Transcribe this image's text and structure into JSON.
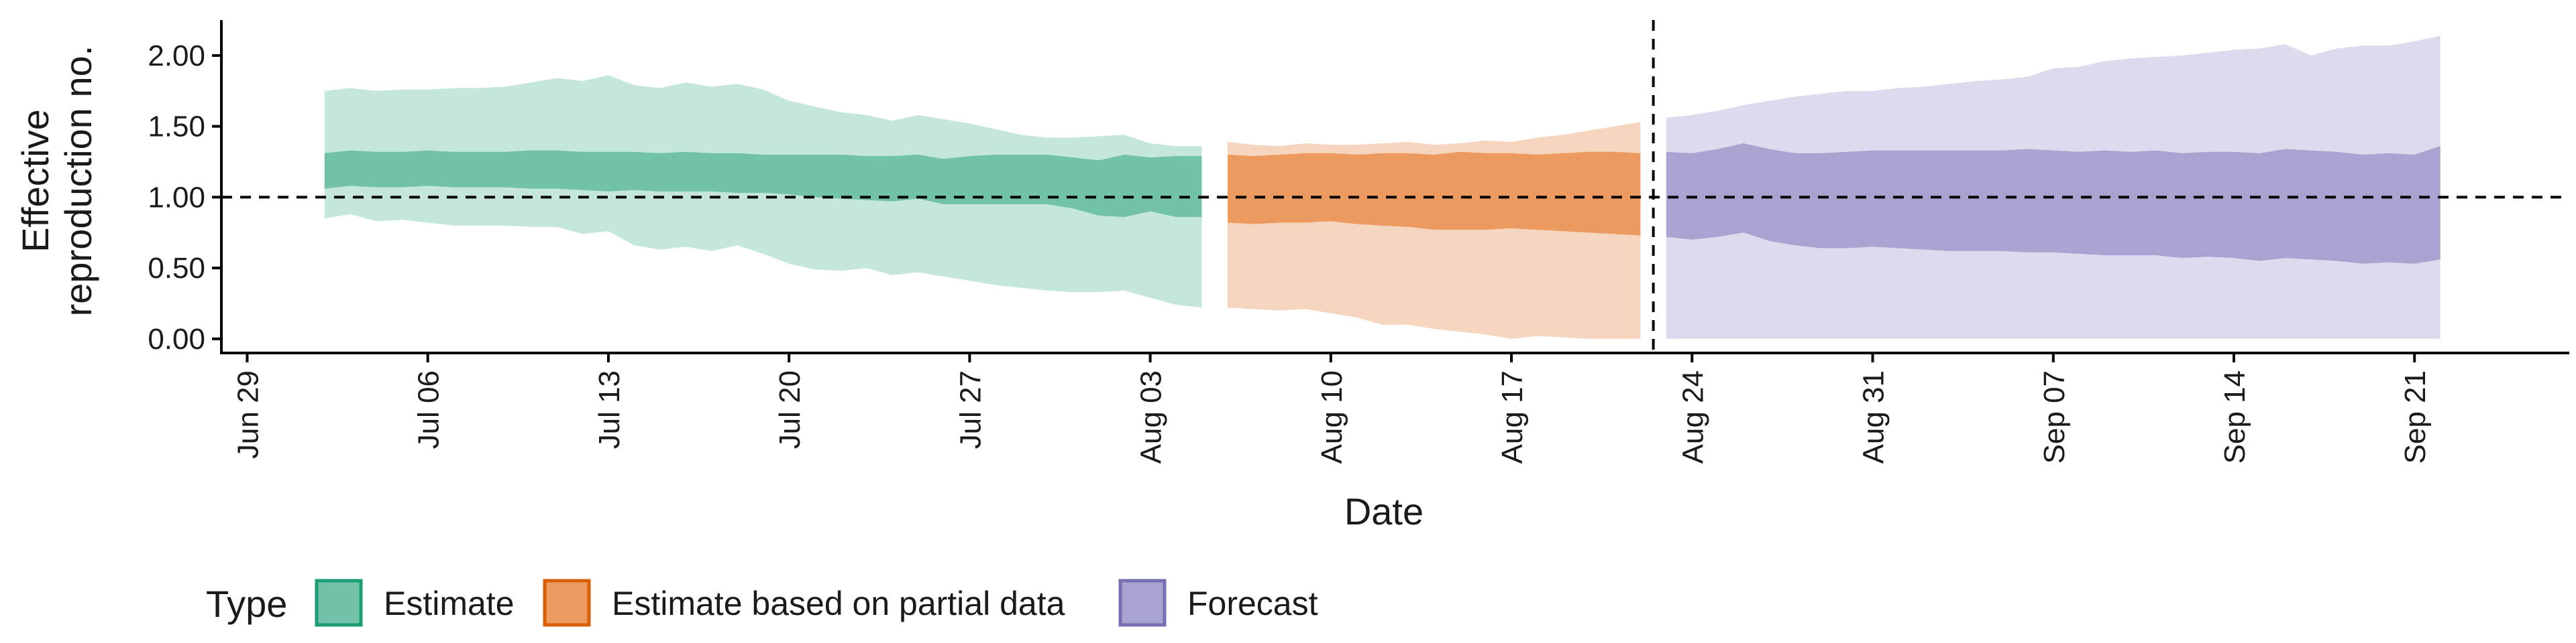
{
  "chart_data": {
    "type": "area",
    "title": "",
    "xlabel": "Date",
    "ylabel": [
      "Effective",
      "reproduction no."
    ],
    "x_ticks": [
      "Jun 29",
      "Jul 06",
      "Jul 13",
      "Jul 20",
      "Jul 27",
      "Aug 03",
      "Aug 10",
      "Aug 17",
      "Aug 24",
      "Aug 31",
      "Sep 07",
      "Sep 14",
      "Sep 21"
    ],
    "y_ticks": [
      "0.00",
      "0.50",
      "1.00",
      "1.50",
      "2.00"
    ],
    "xlim": [
      "2020-06-28",
      "2020-09-27"
    ],
    "ylim": [
      -0.1,
      2.25
    ],
    "reference_line_y": 1.0,
    "vertical_line_x": "2020-08-22",
    "grid": false,
    "legend": {
      "title": "Type",
      "position": "bottom-left",
      "entries": [
        {
          "label": "Estimate",
          "fill": "#71c2a8",
          "stroke": "#1b9e77"
        },
        {
          "label": "Estimate based on partial data",
          "fill": "#ec9a5f",
          "stroke": "#d95f02"
        },
        {
          "label": "Forecast",
          "fill": "#a8a3d0",
          "stroke": "#7570b3"
        }
      ]
    },
    "series": [
      {
        "name": "Estimate",
        "colors": {
          "outer": "#c4e6db",
          "inner": "#71c2a8"
        },
        "x": [
          "2020-07-02",
          "2020-07-03",
          "2020-07-04",
          "2020-07-05",
          "2020-07-06",
          "2020-07-07",
          "2020-07-08",
          "2020-07-09",
          "2020-07-10",
          "2020-07-11",
          "2020-07-12",
          "2020-07-13",
          "2020-07-14",
          "2020-07-15",
          "2020-07-16",
          "2020-07-17",
          "2020-07-18",
          "2020-07-19",
          "2020-07-20",
          "2020-07-21",
          "2020-07-22",
          "2020-07-23",
          "2020-07-24",
          "2020-07-25",
          "2020-07-26",
          "2020-07-27",
          "2020-07-28",
          "2020-07-29",
          "2020-07-30",
          "2020-07-31",
          "2020-08-01",
          "2020-08-02",
          "2020-08-03",
          "2020-08-04",
          "2020-08-05"
        ],
        "outer_upper": [
          1.75,
          1.77,
          1.75,
          1.76,
          1.76,
          1.77,
          1.77,
          1.78,
          1.81,
          1.84,
          1.82,
          1.86,
          1.79,
          1.77,
          1.81,
          1.78,
          1.8,
          1.76,
          1.68,
          1.64,
          1.6,
          1.58,
          1.54,
          1.58,
          1.55,
          1.52,
          1.48,
          1.44,
          1.42,
          1.42,
          1.43,
          1.44,
          1.38,
          1.36,
          1.36
        ],
        "outer_lower": [
          0.85,
          0.88,
          0.83,
          0.84,
          0.82,
          0.8,
          0.8,
          0.8,
          0.79,
          0.79,
          0.74,
          0.76,
          0.66,
          0.63,
          0.65,
          0.62,
          0.66,
          0.6,
          0.53,
          0.49,
          0.48,
          0.5,
          0.45,
          0.47,
          0.44,
          0.41,
          0.38,
          0.36,
          0.34,
          0.33,
          0.33,
          0.34,
          0.29,
          0.24,
          0.22
        ],
        "inner_upper": [
          1.31,
          1.33,
          1.32,
          1.32,
          1.33,
          1.32,
          1.32,
          1.32,
          1.33,
          1.33,
          1.32,
          1.32,
          1.32,
          1.31,
          1.32,
          1.31,
          1.31,
          1.3,
          1.3,
          1.3,
          1.3,
          1.29,
          1.29,
          1.3,
          1.27,
          1.29,
          1.3,
          1.3,
          1.3,
          1.28,
          1.26,
          1.3,
          1.28,
          1.29,
          1.29
        ],
        "inner_lower": [
          1.06,
          1.08,
          1.07,
          1.07,
          1.08,
          1.07,
          1.07,
          1.07,
          1.06,
          1.06,
          1.05,
          1.04,
          1.05,
          1.04,
          1.04,
          1.04,
          1.03,
          1.03,
          1.02,
          1.0,
          0.99,
          0.98,
          0.97,
          0.99,
          0.95,
          0.95,
          0.95,
          0.95,
          0.95,
          0.92,
          0.87,
          0.86,
          0.9,
          0.86,
          0.86
        ]
      },
      {
        "name": "Estimate based on partial data",
        "colors": {
          "outer": "#f5d5bd",
          "inner": "#ec9a5f"
        },
        "x": [
          "2020-08-06",
          "2020-08-07",
          "2020-08-08",
          "2020-08-09",
          "2020-08-10",
          "2020-08-11",
          "2020-08-12",
          "2020-08-13",
          "2020-08-14",
          "2020-08-15",
          "2020-08-16",
          "2020-08-17",
          "2020-08-18",
          "2020-08-19",
          "2020-08-20",
          "2020-08-21",
          "2020-08-22"
        ],
        "outer_upper": [
          1.39,
          1.37,
          1.36,
          1.38,
          1.37,
          1.37,
          1.38,
          1.39,
          1.37,
          1.38,
          1.4,
          1.39,
          1.42,
          1.44,
          1.47,
          1.5,
          1.53
        ],
        "outer_lower": [
          0.22,
          0.21,
          0.2,
          0.21,
          0.18,
          0.15,
          0.1,
          0.1,
          0.07,
          0.05,
          0.03,
          0.0,
          0.02,
          0.01,
          0.0,
          0.0,
          0.0
        ],
        "inner_upper": [
          1.3,
          1.29,
          1.3,
          1.31,
          1.31,
          1.3,
          1.31,
          1.31,
          1.3,
          1.32,
          1.31,
          1.31,
          1.3,
          1.31,
          1.32,
          1.32,
          1.31
        ],
        "inner_lower": [
          0.82,
          0.81,
          0.82,
          0.82,
          0.83,
          0.81,
          0.8,
          0.79,
          0.77,
          0.77,
          0.77,
          0.78,
          0.77,
          0.76,
          0.75,
          0.74,
          0.73
        ]
      },
      {
        "name": "Forecast",
        "colors": {
          "outer": "#dcdaed",
          "inner": "#a8a3d0"
        },
        "x": [
          "2020-08-23",
          "2020-08-24",
          "2020-08-25",
          "2020-08-26",
          "2020-08-27",
          "2020-08-28",
          "2020-08-29",
          "2020-08-30",
          "2020-08-31",
          "2020-09-01",
          "2020-09-02",
          "2020-09-03",
          "2020-09-04",
          "2020-09-05",
          "2020-09-06",
          "2020-09-07",
          "2020-09-08",
          "2020-09-09",
          "2020-09-10",
          "2020-09-11",
          "2020-09-12",
          "2020-09-13",
          "2020-09-14",
          "2020-09-15",
          "2020-09-16",
          "2020-09-17",
          "2020-09-18",
          "2020-09-19",
          "2020-09-20",
          "2020-09-21",
          "2020-09-22"
        ],
        "outer_upper": [
          1.56,
          1.58,
          1.61,
          1.65,
          1.68,
          1.71,
          1.73,
          1.75,
          1.75,
          1.77,
          1.78,
          1.8,
          1.82,
          1.83,
          1.85,
          1.91,
          1.92,
          1.96,
          1.98,
          1.99,
          2.0,
          2.02,
          2.04,
          2.05,
          2.08,
          2.0,
          2.05,
          2.07,
          2.07,
          2.1,
          2.14
        ],
        "outer_lower": [
          0.0,
          0.0,
          0.0,
          0.0,
          0.0,
          0.0,
          0.0,
          0.0,
          0.0,
          0.0,
          0.0,
          0.0,
          0.0,
          0.0,
          0.0,
          0.0,
          0.0,
          0.0,
          0.0,
          0.0,
          0.0,
          0.0,
          0.0,
          0.0,
          0.0,
          0.0,
          0.0,
          0.0,
          0.0,
          0.0,
          0.0
        ],
        "inner_upper": [
          1.32,
          1.31,
          1.34,
          1.38,
          1.34,
          1.31,
          1.31,
          1.32,
          1.33,
          1.33,
          1.33,
          1.33,
          1.33,
          1.33,
          1.34,
          1.33,
          1.32,
          1.33,
          1.32,
          1.33,
          1.31,
          1.32,
          1.32,
          1.31,
          1.34,
          1.33,
          1.32,
          1.3,
          1.31,
          1.3,
          1.36
        ],
        "inner_lower": [
          0.72,
          0.7,
          0.72,
          0.75,
          0.69,
          0.66,
          0.64,
          0.64,
          0.65,
          0.64,
          0.63,
          0.62,
          0.62,
          0.62,
          0.61,
          0.61,
          0.6,
          0.59,
          0.59,
          0.59,
          0.57,
          0.58,
          0.57,
          0.55,
          0.57,
          0.56,
          0.55,
          0.53,
          0.54,
          0.53,
          0.56
        ]
      }
    ]
  }
}
